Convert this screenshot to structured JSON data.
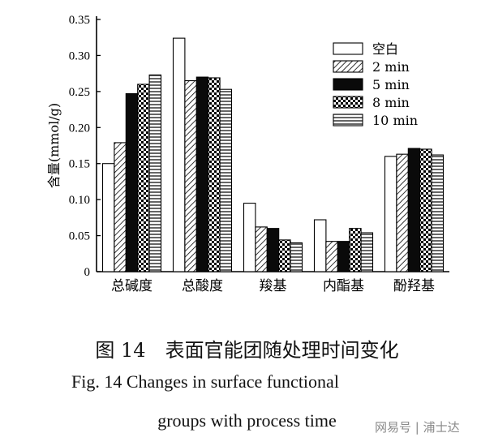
{
  "chart_data": {
    "type": "bar",
    "ylabel": "含量(mmol/g)",
    "ylim": [
      0,
      0.35
    ],
    "yticks": [
      "0",
      "0.05",
      "0.10",
      "0.15",
      "0.20",
      "0.25",
      "0.30",
      "0.35"
    ],
    "categories": [
      "总碱度",
      "总酸度",
      "羧基",
      "内酯基",
      "酚羟基"
    ],
    "series": [
      {
        "name": "空白",
        "pattern": "blank",
        "values": [
          0.15,
          0.324,
          0.095,
          0.072,
          0.16
        ]
      },
      {
        "name": "2 min",
        "pattern": "diagonal",
        "values": [
          0.179,
          0.265,
          0.062,
          0.042,
          0.163
        ]
      },
      {
        "name": "5 min",
        "pattern": "solid",
        "values": [
          0.247,
          0.27,
          0.06,
          0.042,
          0.171
        ]
      },
      {
        "name": "8 min",
        "pattern": "checker",
        "values": [
          0.26,
          0.269,
          0.044,
          0.06,
          0.17
        ]
      },
      {
        "name": "10 min",
        "pattern": "horizontal",
        "values": [
          0.273,
          0.253,
          0.04,
          0.054,
          0.162
        ]
      }
    ],
    "legend_position": "top-right",
    "grid": false
  },
  "caption": {
    "cn": "图 14　表面官能团随处理时间变化",
    "en_line1": "Fig. 14    Changes in surface functional",
    "en_line2": "groups with process time"
  },
  "watermark": "网易号 | 浦士达"
}
